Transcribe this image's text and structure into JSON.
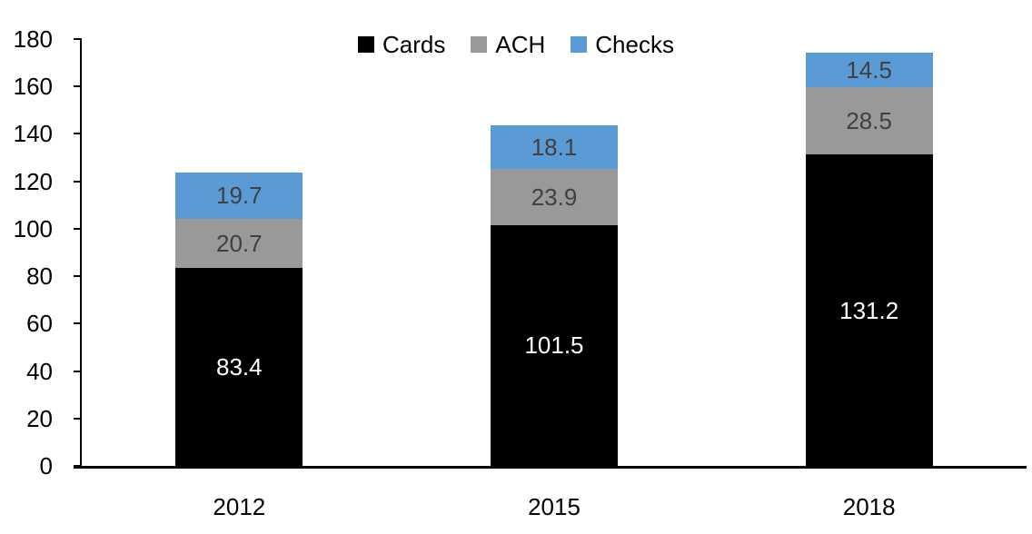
{
  "chart_data": {
    "type": "bar",
    "stacked": true,
    "title": "",
    "categories": [
      "2012",
      "2015",
      "2018"
    ],
    "series": [
      {
        "name": "Cards",
        "values": [
          83.4,
          101.5,
          131.2
        ],
        "color": "#000000",
        "label_color": "#ffffff"
      },
      {
        "name": "ACH",
        "values": [
          20.7,
          23.9,
          28.5
        ],
        "color": "#999999",
        "label_color": "#404040"
      },
      {
        "name": "Checks",
        "values": [
          19.7,
          18.1,
          14.5
        ],
        "color": "#5b9bd5",
        "label_color": "#404040"
      }
    ],
    "totals": [
      123.8,
      143.5,
      174.2
    ],
    "y_axis": {
      "min": 0,
      "max": 180,
      "tick_step": 20,
      "tick_labels": [
        "0",
        "20",
        "40",
        "60",
        "80",
        "100",
        "120",
        "140",
        "160",
        "180"
      ]
    },
    "x_axis": {
      "tick_labels": [
        "2012",
        "2015",
        "2018"
      ]
    },
    "legend": {
      "position": "top",
      "entries": [
        "Cards",
        "ACH",
        "Checks"
      ]
    },
    "grid": false,
    "data_labels": "inside-center",
    "colors": {
      "axis": "#000000",
      "tick_text": "#000000",
      "background": "#ffffff"
    }
  }
}
